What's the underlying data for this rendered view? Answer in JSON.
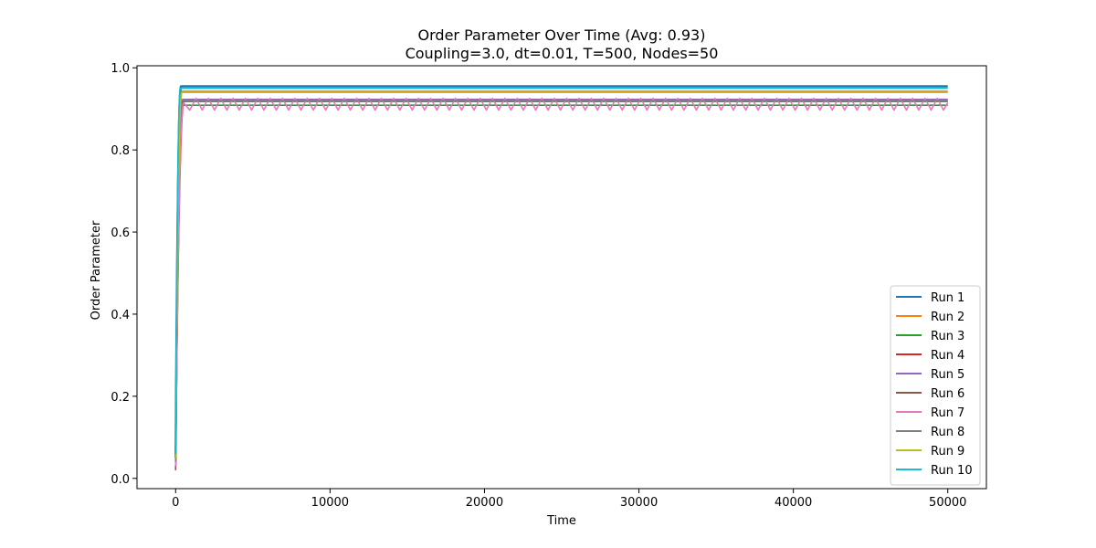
{
  "chart_data": {
    "type": "line",
    "title": "Order Parameter Over Time (Avg: 0.93)",
    "subtitle": "Coupling=3.0, dt=0.01, T=500, Nodes=50",
    "xlabel": "Time",
    "ylabel": "Order Parameter",
    "xlim": [
      -2500,
      52500
    ],
    "ylim": [
      -0.025,
      1.005
    ],
    "xticks": [
      0,
      10000,
      20000,
      30000,
      40000,
      50000
    ],
    "xtick_labels": [
      "0",
      "10000",
      "20000",
      "30000",
      "40000",
      "50000"
    ],
    "yticks": [
      0.0,
      0.2,
      0.4,
      0.6,
      0.8,
      1.0
    ],
    "ytick_labels": [
      "0.0",
      "0.2",
      "0.4",
      "0.6",
      "0.8",
      "1.0"
    ],
    "grid": false,
    "legend_position": "lower-right",
    "series": [
      {
        "name": "Run 1",
        "color": "#1f77b4",
        "start": 0.05,
        "rise_end": 350,
        "plateau": 0.955,
        "oscillation": 0.0
      },
      {
        "name": "Run 2",
        "color": "#ff7f0e",
        "start": 0.03,
        "rise_end": 420,
        "plateau": 0.943,
        "oscillation": 0.0
      },
      {
        "name": "Run 3",
        "color": "#2ca02c",
        "start": 0.02,
        "rise_end": 500,
        "plateau": 0.909,
        "oscillation": 0.0
      },
      {
        "name": "Run 4",
        "color": "#d62728",
        "start": 0.03,
        "rise_end": 550,
        "plateau": 0.919,
        "oscillation": 0.0
      },
      {
        "name": "Run 5",
        "color": "#9467bd",
        "start": 0.04,
        "rise_end": 450,
        "plateau": 0.923,
        "oscillation": 0.0
      },
      {
        "name": "Run 6",
        "color": "#8c564b",
        "start": 0.02,
        "rise_end": 480,
        "plateau": 0.918,
        "oscillation": 0.0
      },
      {
        "name": "Run 7",
        "color": "#e377c2",
        "start": 0.03,
        "rise_end": 520,
        "plateau": 0.915,
        "oscillation": 0.018
      },
      {
        "name": "Run 8",
        "color": "#7f7f7f",
        "start": 0.04,
        "rise_end": 380,
        "plateau": 0.92,
        "oscillation": 0.0
      },
      {
        "name": "Run 9",
        "color": "#bcbd22",
        "start": 0.05,
        "rise_end": 400,
        "plateau": 0.94,
        "oscillation": 0.0
      },
      {
        "name": "Run 10",
        "color": "#17becf",
        "start": 0.06,
        "rise_end": 300,
        "plateau": 0.95,
        "oscillation": 0.0
      }
    ],
    "x_end": 50000
  }
}
